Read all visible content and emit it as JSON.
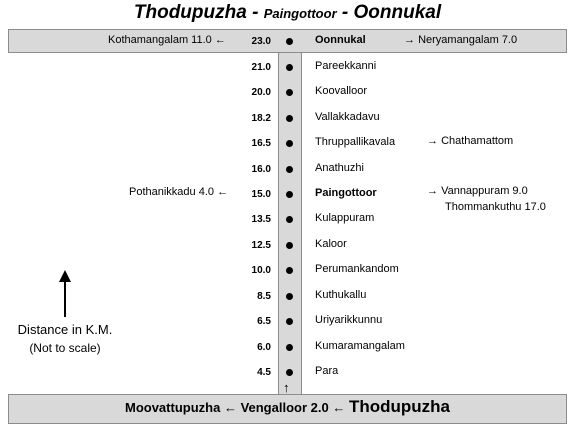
{
  "title": {
    "part1": "Thodupuzha - ",
    "part2": "Paingottoor",
    "part3": " - Oonnukal"
  },
  "top": {
    "left_text": "Kothamangalam 11.0",
    "left_arrow": "←",
    "distance": "23.0",
    "stop": "Oonnukal",
    "right_arrow": "→",
    "right_text": "Neryamangalam 7.0"
  },
  "stops": [
    {
      "km": "21.0",
      "name": "Pareekkanni"
    },
    {
      "km": "20.0",
      "name": "Koovalloor"
    },
    {
      "km": "18.2",
      "name": "Vallakkadavu"
    },
    {
      "km": "16.5",
      "name": "Thruppallikavala"
    },
    {
      "km": "16.0",
      "name": "Anathuzhi"
    },
    {
      "km": "15.0",
      "name": "Paingottoor"
    },
    {
      "km": "13.5",
      "name": "Kulappuram"
    },
    {
      "km": "12.5",
      "name": "Kaloor"
    },
    {
      "km": "10.0",
      "name": "Perumankandom"
    },
    {
      "km": "8.5",
      "name": "Kuthukallu"
    },
    {
      "km": "6.5",
      "name": "Uriyarikkunnu"
    },
    {
      "km": "6.0",
      "name": "Kumaramangalam"
    },
    {
      "km": "4.5",
      "name": "Para"
    }
  ],
  "branches": {
    "thruppallikavala_right": "Chathamattom",
    "paingottoor_left": "Pothanikkadu 4.0",
    "paingottoor_right_1": "Vannappuram 9.0",
    "paingottoor_right_2": "Thommankuthu 17.0",
    "arrow_right": "→",
    "arrow_left": "←",
    "arrow_up": "↑"
  },
  "bottom": {
    "left": "Moovattupuzha",
    "arrow1": "←",
    "middle": "Vengalloor 2.0",
    "arrow2": "←",
    "right": "Thodupuzha"
  },
  "legend": {
    "line1": "Distance in K.M.",
    "line2": "(Not to scale)"
  }
}
